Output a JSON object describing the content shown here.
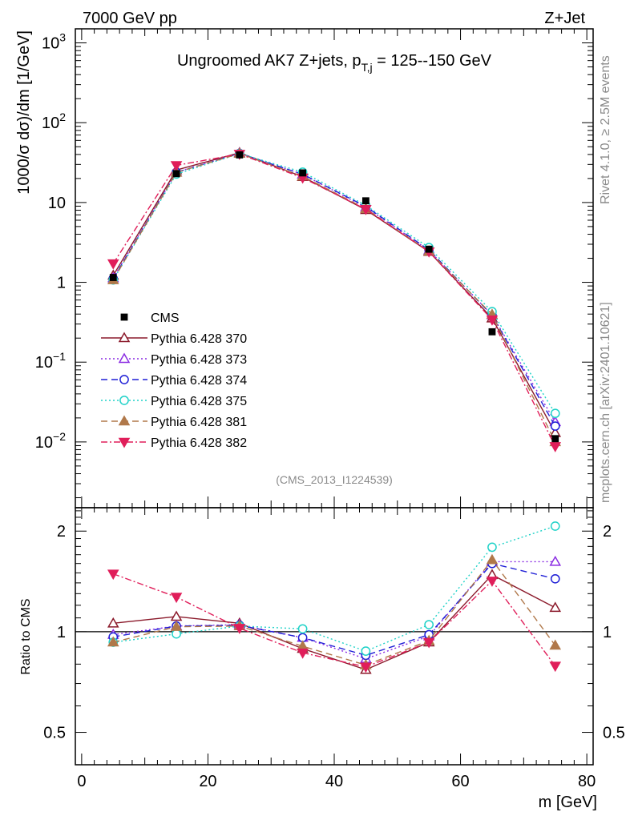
{
  "header": {
    "left": "7000 GeV pp",
    "right": "Z+Jet"
  },
  "side_labels": {
    "rivet": "Rivet 4.1.0, ≥ 2.5M events",
    "mcplots": "mcplots.cern.ch [arXiv:2401.10621]"
  },
  "chart_data": {
    "type": "line",
    "title_main": "Ungroomed AK7 Z+jets, p",
    "title_sub": "T,j",
    "title_tail": " = 125--150 GeV",
    "analysis_id": "(CMS_2013_I1224539)",
    "xlabel": "m [GeV]",
    "ylabel": "1000/σ  dσ)/dm [1/GeV]",
    "ratio_ylabel": "Ratio to CMS",
    "xlim": [
      -1,
      81
    ],
    "ylim": [
      0.0015,
      1500
    ],
    "ratio_ylim": [
      0.4,
      2.35
    ],
    "x_ticks": [
      "0",
      "20",
      "40",
      "60",
      "80"
    ],
    "y_ticks": [
      {
        "base": "10",
        "exp": "3",
        "value": 1000
      },
      {
        "base": "10",
        "exp": "2",
        "value": 100
      },
      {
        "base": "10",
        "exp": "",
        "value": 10
      },
      {
        "base": "1",
        "exp": "",
        "value": 1
      },
      {
        "base": "10",
        "exp": "−1",
        "value": 0.1
      },
      {
        "base": "10",
        "exp": "−2",
        "value": 0.01
      }
    ],
    "ratio_ticks": [
      "0.5",
      "1",
      "2"
    ],
    "x": [
      5,
      15,
      25,
      35,
      45,
      55,
      65,
      75
    ],
    "data": {
      "name": "CMS",
      "values": [
        1.15,
        23.0,
        39.5,
        23.5,
        10.5,
        2.6,
        0.24,
        0.011
      ]
    },
    "series": [
      {
        "name": "Pythia 6.428 370",
        "color": "#8b1a2b",
        "dash": "",
        "marker": "tri-up-open",
        "values": [
          1.22,
          25.5,
          42.0,
          21.0,
          8.1,
          2.42,
          0.355,
          0.013
        ],
        "ratio": [
          1.06,
          1.11,
          1.06,
          0.89,
          0.77,
          0.93,
          1.48,
          1.18
        ]
      },
      {
        "name": "Pythia 6.428 373",
        "color": "#8a2be2",
        "dash": "2,3",
        "marker": "tri-up-open",
        "values": [
          1.13,
          24.0,
          41.5,
          22.5,
          8.7,
          2.52,
          0.39,
          0.0178
        ],
        "ratio": [
          0.98,
          1.04,
          1.05,
          0.96,
          0.83,
          0.97,
          1.62,
          1.62
        ]
      },
      {
        "name": "Pythia 6.428 374",
        "color": "#1f1fd6",
        "dash": "8,5",
        "marker": "circle-open",
        "values": [
          1.11,
          23.9,
          41.2,
          22.6,
          8.9,
          2.55,
          0.385,
          0.0158
        ],
        "ratio": [
          0.965,
          1.04,
          1.045,
          0.96,
          0.85,
          0.98,
          1.6,
          1.44
        ]
      },
      {
        "name": "Pythia 6.428 375",
        "color": "#20d2c8",
        "dash": "2,3",
        "marker": "circle-open",
        "values": [
          1.07,
          22.7,
          41.0,
          24.0,
          9.2,
          2.73,
          0.43,
          0.0228
        ],
        "ratio": [
          0.93,
          0.985,
          1.04,
          1.02,
          0.875,
          1.05,
          1.79,
          2.07
        ]
      },
      {
        "name": "Pythia 6.428 381",
        "color": "#b0784a",
        "dash": "8,5",
        "marker": "tri-up-filled",
        "values": [
          1.07,
          23.8,
          41.0,
          21.3,
          8.35,
          2.45,
          0.395,
          0.01
        ],
        "ratio": [
          0.93,
          1.035,
          1.04,
          0.905,
          0.795,
          0.94,
          1.64,
          0.91
        ]
      },
      {
        "name": "Pythia 6.428 382",
        "color": "#e01e5a",
        "dash": "8,3,2,3",
        "marker": "tri-down-filled",
        "values": [
          1.72,
          29.2,
          40.5,
          20.4,
          8.25,
          2.42,
          0.34,
          0.0088
        ],
        "ratio": [
          1.49,
          1.27,
          1.025,
          0.865,
          0.785,
          0.93,
          1.42,
          0.79
        ]
      }
    ]
  }
}
